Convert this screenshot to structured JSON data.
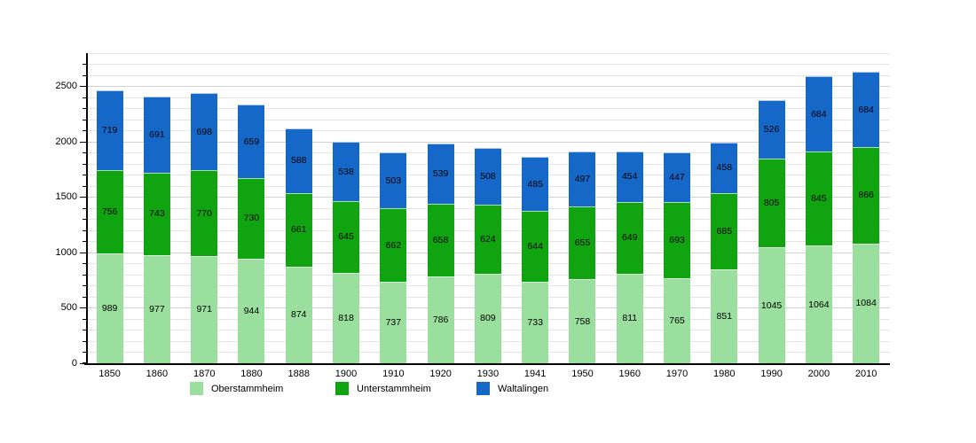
{
  "chart_data": {
    "type": "bar",
    "stacked": true,
    "title": "",
    "xlabel": "",
    "ylabel": "",
    "categories": [
      "1850",
      "1860",
      "1870",
      "1880",
      "1888",
      "1900",
      "1910",
      "1920",
      "1930",
      "1941",
      "1950",
      "1960",
      "1970",
      "1980",
      "1990",
      "2000",
      "2010"
    ],
    "series": [
      {
        "name": "Oberstammheim",
        "color": "#9adf9e",
        "values": [
          989,
          977,
          971,
          944,
          874,
          818,
          737,
          786,
          809,
          733,
          758,
          811,
          765,
          851,
          1045,
          1064,
          1084
        ]
      },
      {
        "name": "Unterstammheim",
        "color": "#10a410",
        "values": [
          756,
          743,
          770,
          730,
          661,
          645,
          662,
          658,
          624,
          644,
          655,
          649,
          693,
          685,
          805,
          845,
          866
        ]
      },
      {
        "name": "Waltalingen",
        "color": "#1568c8",
        "values": [
          719,
          691,
          698,
          659,
          588,
          538,
          503,
          539,
          508,
          485,
          497,
          454,
          447,
          458,
          526,
          684,
          684
        ]
      }
    ],
    "ylim": [
      0,
      2800
    ],
    "yticks": [
      0,
      500,
      1000,
      1500,
      2000,
      2500
    ],
    "grid": {
      "horizontal": true,
      "minor_step": 100,
      "major_step": 500
    },
    "legend_position": "bottom",
    "value_labels": "centered-inside-segments"
  },
  "legend": {
    "items": [
      "Oberstammheim",
      "Unterstammheim",
      "Waltalingen"
    ]
  }
}
